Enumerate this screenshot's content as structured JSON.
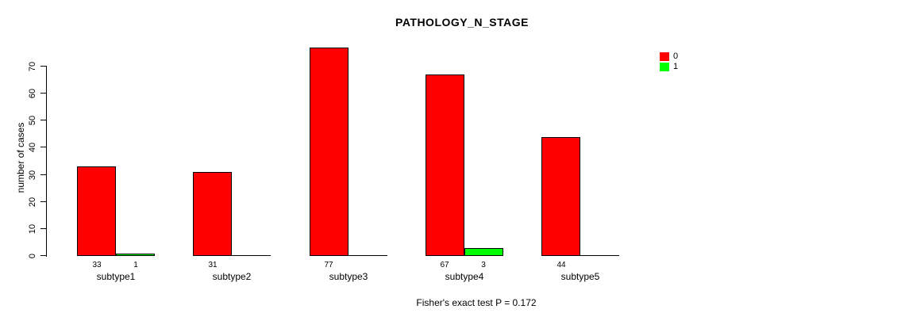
{
  "title": "PATHOLOGY_N_STAGE",
  "footer": "Fisher's exact test P = 0.172",
  "y_axis": {
    "label": "number of cases"
  },
  "chart_data": {
    "type": "bar",
    "title": "PATHOLOGY_N_STAGE",
    "xlabel": "",
    "ylabel": "number of cases",
    "categories": [
      "subtype1",
      "subtype2",
      "subtype3",
      "subtype4",
      "subtype5"
    ],
    "series": [
      {
        "name": "0",
        "color": "#ff0000",
        "values": [
          33,
          31,
          77,
          67,
          44
        ]
      },
      {
        "name": "1",
        "color": "#00ff00",
        "values": [
          1,
          0,
          0,
          3,
          0
        ]
      }
    ],
    "ylim": [
      0,
      70
    ],
    "yticks": [
      0,
      10,
      20,
      30,
      40,
      50,
      60,
      70
    ],
    "grid": false,
    "legend_position": "top-right",
    "bar_value_labels": "shown below baseline for non-zero bars",
    "annotation": "Fisher's exact test P = 0.172"
  }
}
